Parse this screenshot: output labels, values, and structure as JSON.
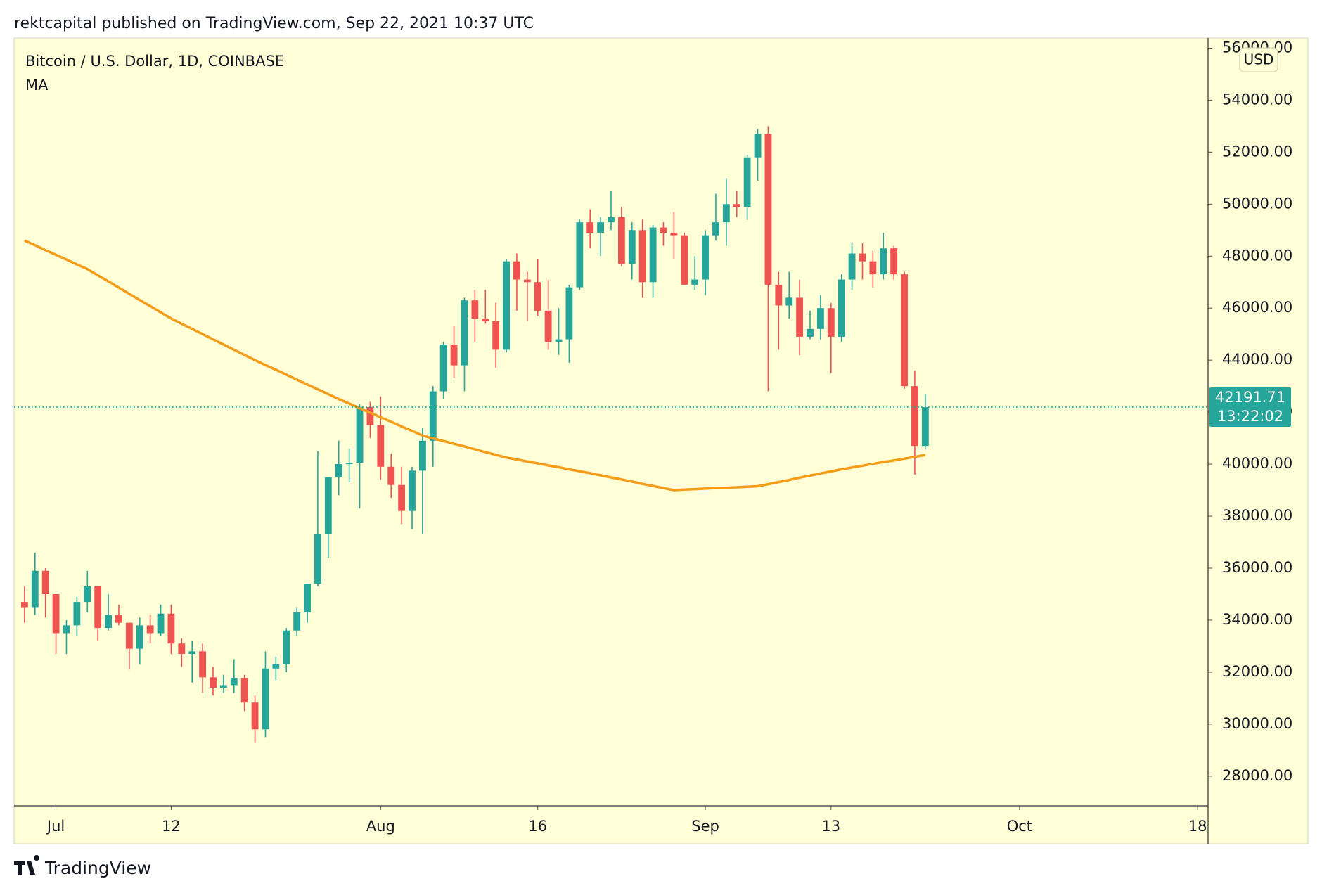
{
  "header": "rektcapital published on TradingView.com, Sep 22, 2021 10:37 UTC",
  "footer": "TradingView",
  "chart_data": {
    "type": "candlestick",
    "title": "Bitcoin / U.S. Dollar, 1D, COINBASE",
    "currency": "USD",
    "countdown": "13:22:02",
    "up_color": "#26a69a",
    "down_color": "#ef5350",
    "grid": false,
    "x": [
      "2021-06-28",
      "2021-06-29",
      "2021-06-30",
      "2021-07-01",
      "2021-07-02",
      "2021-07-03",
      "2021-07-04",
      "2021-07-05",
      "2021-07-06",
      "2021-07-07",
      "2021-07-08",
      "2021-07-09",
      "2021-07-10",
      "2021-07-11",
      "2021-07-12",
      "2021-07-13",
      "2021-07-14",
      "2021-07-15",
      "2021-07-16",
      "2021-07-17",
      "2021-07-18",
      "2021-07-19",
      "2021-07-20",
      "2021-07-21",
      "2021-07-22",
      "2021-07-23",
      "2021-07-24",
      "2021-07-25",
      "2021-07-26",
      "2021-07-27",
      "2021-07-28",
      "2021-07-29",
      "2021-07-30",
      "2021-07-31",
      "2021-08-01",
      "2021-08-02",
      "2021-08-03",
      "2021-08-04",
      "2021-08-05",
      "2021-08-06",
      "2021-08-07",
      "2021-08-08",
      "2021-08-09",
      "2021-08-10",
      "2021-08-11",
      "2021-08-12",
      "2021-08-13",
      "2021-08-14",
      "2021-08-15",
      "2021-08-16",
      "2021-08-17",
      "2021-08-18",
      "2021-08-19",
      "2021-08-20",
      "2021-08-21",
      "2021-08-22",
      "2021-08-23",
      "2021-08-24",
      "2021-08-25",
      "2021-08-26",
      "2021-08-27",
      "2021-08-28",
      "2021-08-29",
      "2021-08-30",
      "2021-08-31",
      "2021-09-01",
      "2021-09-02",
      "2021-09-03",
      "2021-09-04",
      "2021-09-05",
      "2021-09-06",
      "2021-09-07",
      "2021-09-08",
      "2021-09-09",
      "2021-09-10",
      "2021-09-11",
      "2021-09-12",
      "2021-09-13",
      "2021-09-14",
      "2021-09-15",
      "2021-09-16",
      "2021-09-17",
      "2021-09-18",
      "2021-09-19",
      "2021-09-20",
      "2021-09-21",
      "2021-09-22"
    ],
    "open": [
      34700,
      34500,
      35900,
      35000,
      33500,
      33800,
      34700,
      35300,
      33700,
      34200,
      33900,
      32900,
      33800,
      33500,
      34250,
      33100,
      32700,
      32800,
      31800,
      31400,
      31500,
      31780,
      30830,
      29800,
      32140,
      32300,
      33600,
      34300,
      35400,
      37300,
      39500,
      40000,
      40050,
      42200,
      41500,
      39900,
      39200,
      38200,
      39750,
      40900,
      42800,
      44600,
      43800,
      46300,
      45600,
      45500,
      44400,
      47800,
      47100,
      47000,
      45900,
      44700,
      44800,
      46800,
      49300,
      48900,
      49300,
      49500,
      47700,
      49000,
      47000,
      49100,
      48900,
      48800,
      46900,
      47100,
      48800,
      49300,
      50000,
      49900,
      51800,
      52700,
      46900,
      46100,
      46400,
      44900,
      45200,
      46000,
      44900,
      47100,
      48100,
      47800,
      47300,
      48300,
      47300,
      43000,
      40700
    ],
    "high": [
      35300,
      36600,
      36000,
      35000,
      34000,
      34900,
      35900,
      35300,
      35000,
      34600,
      33900,
      34100,
      34200,
      34600,
      34600,
      33300,
      33200,
      33100,
      32200,
      31900,
      32500,
      31900,
      31100,
      32800,
      32600,
      33700,
      34500,
      35400,
      40500,
      39500,
      40900,
      40600,
      42300,
      42400,
      42600,
      40400,
      39900,
      39900,
      41400,
      43000,
      44700,
      45300,
      46400,
      46700,
      46700,
      46200,
      47900,
      48100,
      47400,
      47900,
      47100,
      46000,
      46900,
      49400,
      49800,
      49500,
      50500,
      49900,
      49300,
      49400,
      49200,
      49300,
      49700,
      48900,
      48000,
      49000,
      50400,
      51000,
      50500,
      51900,
      52900,
      53000,
      47400,
      47400,
      47100,
      45900,
      46500,
      46200,
      47300,
      48500,
      48500,
      48200,
      48900,
      48400,
      47400,
      43600,
      42700
    ],
    "low": [
      33900,
      34200,
      34100,
      32700,
      32700,
      33400,
      34300,
      33200,
      33600,
      33800,
      32100,
      32300,
      33100,
      33400,
      32700,
      32200,
      31600,
      31200,
      31100,
      31200,
      31200,
      30500,
      29300,
      29500,
      31700,
      32000,
      33400,
      33900,
      35300,
      36400,
      38800,
      39300,
      38300,
      41000,
      39400,
      38700,
      37700,
      37500,
      37300,
      39900,
      42500,
      43300,
      42800,
      44700,
      45400,
      43700,
      44300,
      45900,
      45500,
      45700,
      44400,
      44200,
      43900,
      46700,
      48300,
      48000,
      49000,
      47600,
      47100,
      46400,
      46400,
      48400,
      47900,
      46900,
      46700,
      46500,
      48600,
      48400,
      49500,
      49400,
      50900,
      42800,
      44400,
      45600,
      44200,
      44800,
      44800,
      43500,
      44700,
      46700,
      47100,
      46800,
      47100,
      47100,
      42900,
      39600,
      40600
    ],
    "close": [
      34500,
      35900,
      35000,
      33500,
      33800,
      34700,
      35300,
      33700,
      34200,
      33900,
      32900,
      33800,
      33500,
      34250,
      33100,
      32700,
      32800,
      31800,
      31400,
      31500,
      31780,
      30830,
      29800,
      32140,
      32300,
      33600,
      34300,
      35400,
      37300,
      39500,
      40000,
      40050,
      42200,
      41500,
      39900,
      39200,
      38200,
      39750,
      40900,
      42800,
      44600,
      43800,
      46300,
      45600,
      45500,
      44400,
      47800,
      47100,
      47000,
      45900,
      44700,
      44800,
      46800,
      49300,
      48900,
      49300,
      49500,
      47700,
      49000,
      47000,
      49100,
      48900,
      48800,
      46900,
      47100,
      48800,
      49300,
      50000,
      49900,
      51800,
      52700,
      46900,
      46100,
      46400,
      44900,
      45200,
      46000,
      44900,
      47100,
      48100,
      47800,
      47300,
      48300,
      47300,
      43000,
      40700,
      42191.71
    ],
    "ma": {
      "name": "MA",
      "color": "#f59c1a",
      "values": [
        48600,
        48420,
        48230,
        48050,
        47870,
        47680,
        47500,
        47260,
        47030,
        46790,
        46550,
        46310,
        46080,
        45840,
        45600,
        45400,
        45200,
        45000,
        44800,
        44600,
        44400,
        44200,
        44000,
        43810,
        43630,
        43440,
        43250,
        43060,
        42880,
        42690,
        42500,
        42330,
        42150,
        41980,
        41800,
        41630,
        41450,
        41280,
        41100,
        40990,
        40890,
        40780,
        40680,
        40570,
        40460,
        40360,
        40250,
        40180,
        40100,
        40030,
        39950,
        39880,
        39800,
        39730,
        39650,
        39570,
        39490,
        39410,
        39330,
        39240,
        39160,
        39080,
        39000,
        39020,
        39040,
        39060,
        39080,
        39090,
        39110,
        39130,
        39150,
        39230,
        39310,
        39390,
        39480,
        39560,
        39640,
        39720,
        39800,
        39870,
        39940,
        40010,
        40080,
        40140,
        40210,
        40280,
        40350
      ]
    },
    "xlim": [
      "2021-06-27",
      "2021-10-19"
    ],
    "xticks": [
      {
        "value": "2021-07-01",
        "label": "Jul"
      },
      {
        "value": "2021-07-12",
        "label": "12"
      },
      {
        "value": "2021-08-01",
        "label": "Aug"
      },
      {
        "value": "2021-08-16",
        "label": "16"
      },
      {
        "value": "2021-09-01",
        "label": "Sep"
      },
      {
        "value": "2021-09-13",
        "label": "13"
      },
      {
        "value": "2021-10-01",
        "label": "Oct"
      },
      {
        "value": "2021-10-18",
        "label": "18"
      }
    ],
    "ylim": [
      26860,
      56390
    ],
    "yticks": [
      {
        "value": 28000,
        "label": "28000.00"
      },
      {
        "value": 30000,
        "label": "30000.00"
      },
      {
        "value": 32000,
        "label": "32000.00"
      },
      {
        "value": 34000,
        "label": "34000.00"
      },
      {
        "value": 36000,
        "label": "36000.00"
      },
      {
        "value": 38000,
        "label": "38000.00"
      },
      {
        "value": 40000,
        "label": "40000.00"
      },
      {
        "value": 42000,
        "label": "42000.00"
      },
      {
        "value": 44000,
        "label": "44000.00"
      },
      {
        "value": 46000,
        "label": "46000.00"
      },
      {
        "value": 48000,
        "label": "48000.00"
      },
      {
        "value": 50000,
        "label": "50000.00"
      },
      {
        "value": 52000,
        "label": "52000.00"
      },
      {
        "value": 54000,
        "label": "54000.00"
      },
      {
        "value": 56000,
        "label": "56000.00"
      }
    ]
  }
}
